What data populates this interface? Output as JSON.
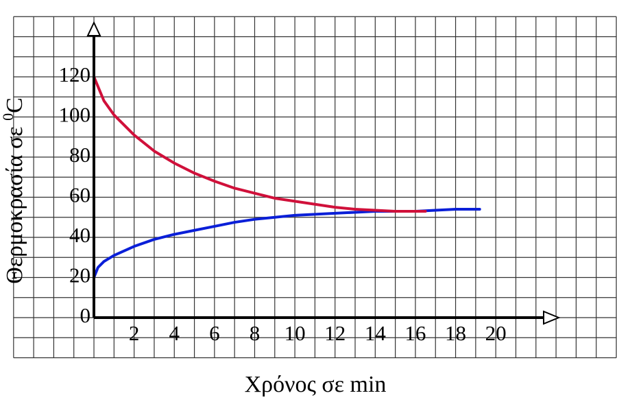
{
  "chart_data": {
    "type": "line",
    "xlabel": "Χρόνος σε min",
    "ylabel": "Θερμοκρασία σε",
    "ylabel_sup": "0",
    "ylabel_unit": "C",
    "xlim": [
      -4,
      26
    ],
    "ylim": [
      -20,
      150
    ],
    "xticks": [
      2,
      4,
      6,
      8,
      10,
      12,
      14,
      16,
      18,
      20
    ],
    "yticks": [
      0,
      20,
      40,
      60,
      80,
      100,
      120
    ],
    "grid": true,
    "xgrid": [
      -4,
      -3,
      -2,
      -1,
      0,
      1,
      2,
      3,
      4,
      5,
      6,
      7,
      8,
      9,
      10,
      11,
      12,
      13,
      14,
      15,
      16,
      17,
      18,
      19,
      20,
      21,
      22,
      23,
      24,
      25,
      26
    ],
    "ygrid": [
      -20,
      -10,
      0,
      10,
      20,
      30,
      40,
      50,
      60,
      70,
      80,
      90,
      100,
      110,
      120,
      130,
      140,
      150
    ],
    "series": [
      {
        "color": "#0a1fd8",
        "x": [
          0,
          0.2,
          0.5,
          1,
          2,
          3,
          4,
          5,
          6,
          7,
          8,
          9,
          10,
          11,
          12,
          13,
          14,
          15,
          16,
          17,
          18,
          19.2
        ],
        "values": [
          20,
          25,
          28,
          31,
          35.5,
          39,
          41.5,
          43.5,
          45.5,
          47.5,
          49,
          50,
          51,
          51.5,
          52,
          52.5,
          53,
          53,
          53,
          53.5,
          54,
          54
        ]
      },
      {
        "color": "#d0103a",
        "x": [
          0,
          0.5,
          1,
          2,
          3,
          4,
          5,
          6,
          7,
          8,
          9,
          10,
          11,
          12,
          13,
          14,
          15,
          16,
          16.5
        ],
        "values": [
          120,
          108,
          101,
          91,
          83,
          77,
          72,
          68,
          64.5,
          62,
          59.5,
          58,
          56.5,
          55,
          54,
          53.5,
          53,
          53,
          53
        ]
      }
    ]
  }
}
